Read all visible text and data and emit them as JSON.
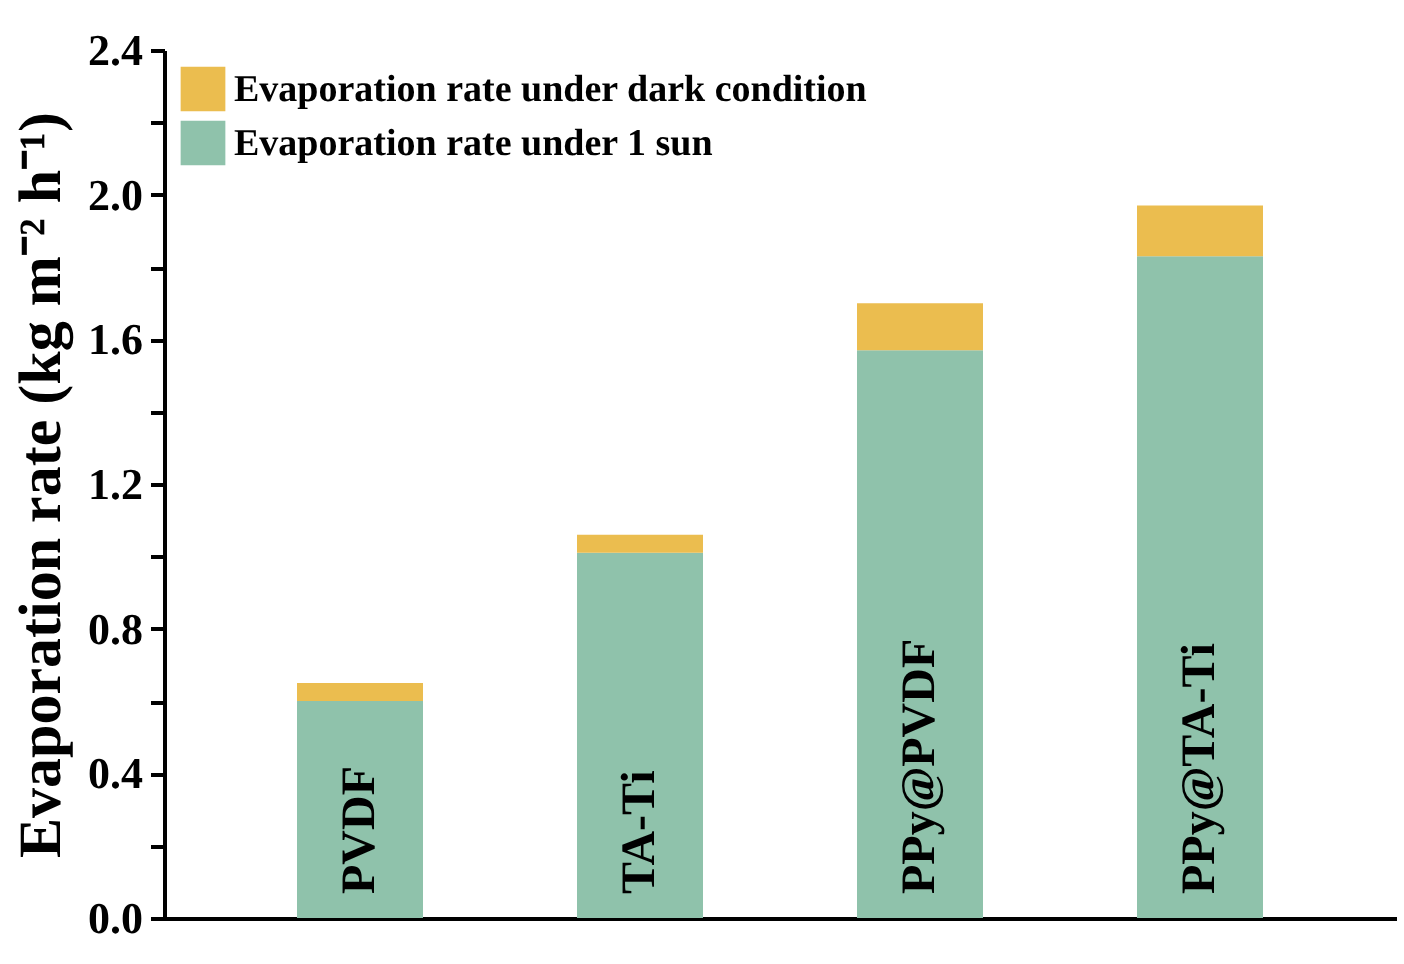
{
  "chart_data": {
    "type": "bar",
    "stacked": true,
    "ylabel": "Evaporation rate (kg m⁻² h⁻¹)",
    "categories": [
      "PVDF",
      "TA-Ti",
      "PPy@PVDF",
      "PPy@TA-Ti"
    ],
    "series": [
      {
        "name": "Evaporation rate under 1 sun",
        "color": "#8fc2ab",
        "values": [
          0.6,
          1.01,
          1.57,
          1.83
        ]
      },
      {
        "name": "Evaporation rate under dark condition",
        "color": "#ebbd4f",
        "values": [
          0.05,
          0.05,
          0.13,
          0.14
        ]
      }
    ],
    "ylim": [
      0,
      2.4
    ],
    "yticks": [
      {
        "value": 0,
        "label": "0.0"
      },
      {
        "value": 0.2,
        "label": null
      },
      0.4,
      {
        "value": 0.6,
        "label": null
      },
      0.8,
      {
        "value": 1.0,
        "label": null
      },
      1.2,
      {
        "value": 1.4,
        "label": null
      },
      1.6,
      {
        "value": 1.8,
        "label": null
      },
      {
        "value": 2,
        "label": "2.0"
      },
      {
        "value": 2.2,
        "label": null
      },
      2.4
    ],
    "legend": "top left",
    "grid": false
  }
}
